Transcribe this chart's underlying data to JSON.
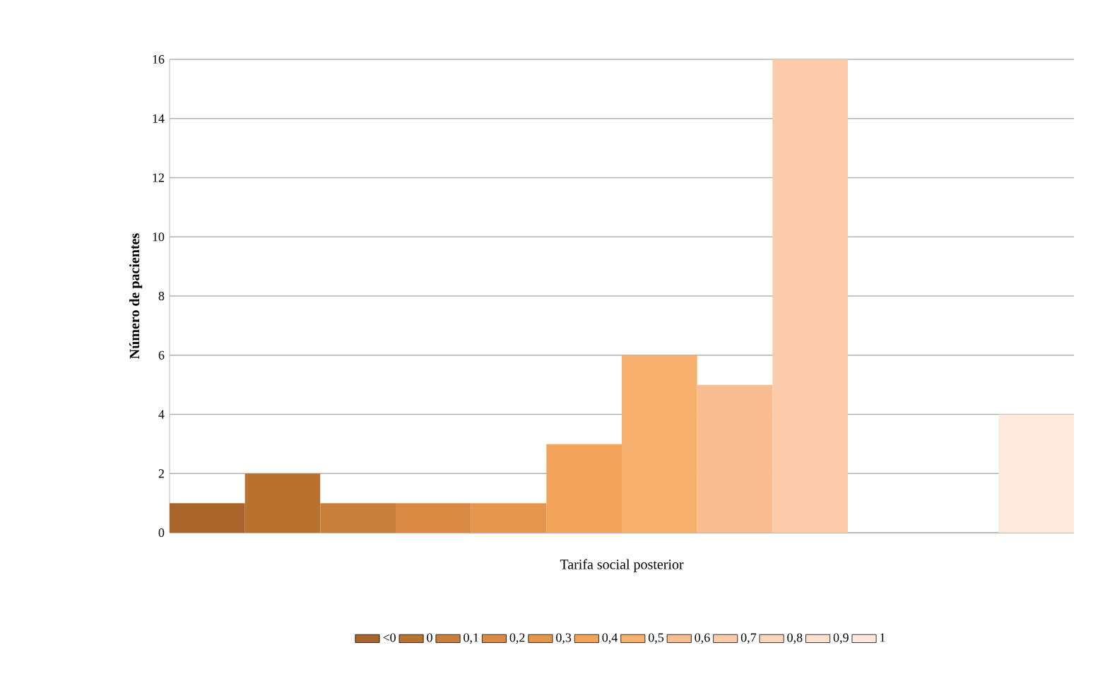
{
  "chart_data": {
    "type": "bar",
    "xlabel": "Tarifa social posterior",
    "ylabel": "Número de pacientes",
    "categories": [
      null
    ],
    "series": [
      {
        "name": "<0",
        "color": "#a8642a",
        "values": [
          1
        ]
      },
      {
        "name": "0",
        "color": "#b8722f",
        "values": [
          2
        ]
      },
      {
        "name": "0,1",
        "color": "#c97f3c",
        "values": [
          1
        ]
      },
      {
        "name": "0,2",
        "color": "#d98b46",
        "values": [
          1
        ]
      },
      {
        "name": "0,3",
        "color": "#e6964c",
        "values": [
          1
        ]
      },
      {
        "name": "0,4",
        "color": "#f2a458",
        "values": [
          3
        ]
      },
      {
        "name": "0,5",
        "color": "#f8b06e",
        "values": [
          6
        ]
      },
      {
        "name": "0,6",
        "color": "#fabd92",
        "values": [
          5
        ]
      },
      {
        "name": "0,7",
        "color": "#fcccaa",
        "values": [
          16
        ]
      },
      {
        "name": "0,8",
        "color": "#fcd6bd",
        "values": [
          0
        ]
      },
      {
        "name": "0,9",
        "color": "#fde0cf",
        "values": [
          0
        ]
      },
      {
        "name": "1",
        "color": "#fde8dd",
        "values": [
          4
        ]
      }
    ],
    "ylim": [
      0,
      16
    ],
    "yticks": [
      0,
      2,
      4,
      6,
      8,
      10,
      12,
      14,
      16
    ],
    "grid": "y",
    "legend": "bottom"
  }
}
